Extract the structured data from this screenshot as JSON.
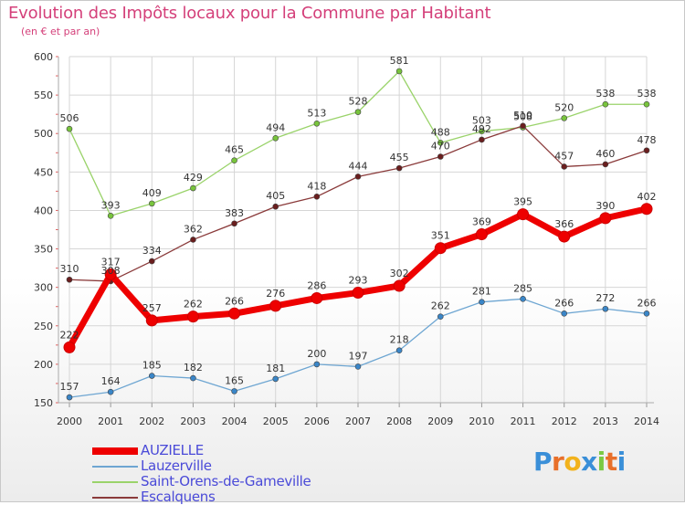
{
  "header": {
    "title": "Evolution des Impôts locaux pour la Commune par Habitant",
    "subtitle": "(en € et par an)"
  },
  "logo": {
    "text": "Proxiti",
    "letter_colors": [
      "#3a8fd8",
      "#e8702a",
      "#f2b21c",
      "#3a8fd8",
      "#7ac943",
      "#e8702a",
      "#3a8fd8"
    ]
  },
  "chart_data": {
    "type": "line",
    "x": [
      "2000",
      "2001",
      "2002",
      "2003",
      "2004",
      "2005",
      "2006",
      "2007",
      "2008",
      "2009",
      "2010",
      "2011",
      "2012",
      "2013",
      "2014"
    ],
    "ylim": [
      150,
      600
    ],
    "yticks": [
      "150",
      "200",
      "250",
      "300",
      "350",
      "400",
      "450",
      "500",
      "550",
      "600"
    ],
    "grid": true,
    "legend_position": "bottom-left",
    "series": [
      {
        "name": "AUZIELLE",
        "color": "#ee0000",
        "marker_color": "#ee0000",
        "values": [
          222,
          317,
          257,
          262,
          266,
          276,
          286,
          293,
          302,
          351,
          369,
          395,
          366,
          390,
          402
        ],
        "labels": [
          "222",
          "317",
          "257",
          "262",
          "266",
          "276",
          "286",
          "293",
          "302",
          "351",
          "369",
          "395",
          "366",
          "390",
          "402"
        ],
        "emphasis": true
      },
      {
        "name": "Lauzerville",
        "color": "#6ea6d2",
        "marker_color": "#3a86c8",
        "values": [
          157,
          164,
          185,
          182,
          165,
          181,
          200,
          197,
          218,
          262,
          281,
          285,
          266,
          272,
          266
        ],
        "labels": [
          "157",
          "164",
          "185",
          "182",
          "165",
          "181",
          "200",
          "197",
          "218",
          "262",
          "281",
          "285",
          "266",
          "272",
          "266"
        ]
      },
      {
        "name": "Saint-Orens-de-Gameville",
        "color": "#9ad36a",
        "marker_color": "#78c43c",
        "values": [
          506,
          393,
          409,
          429,
          465,
          494,
          513,
          528,
          581,
          488,
          503,
          508,
          520,
          538,
          538
        ],
        "labels": [
          "506",
          "393",
          "409",
          "429",
          "465",
          "494",
          "513",
          "528",
          "581",
          "488",
          "503",
          "508",
          "520",
          "538",
          "538"
        ]
      },
      {
        "name": "Escalquens",
        "color": "#8a3a3a",
        "marker_color": "#6a1e1e",
        "values": [
          310,
          308,
          334,
          362,
          383,
          405,
          418,
          444,
          455,
          470,
          492,
          510,
          457,
          460,
          478
        ],
        "labels": [
          "310",
          "308",
          "334",
          "362",
          "383",
          "405",
          "418",
          "444",
          "455",
          "470",
          "492",
          "510",
          "457",
          "460",
          "478"
        ]
      }
    ]
  }
}
